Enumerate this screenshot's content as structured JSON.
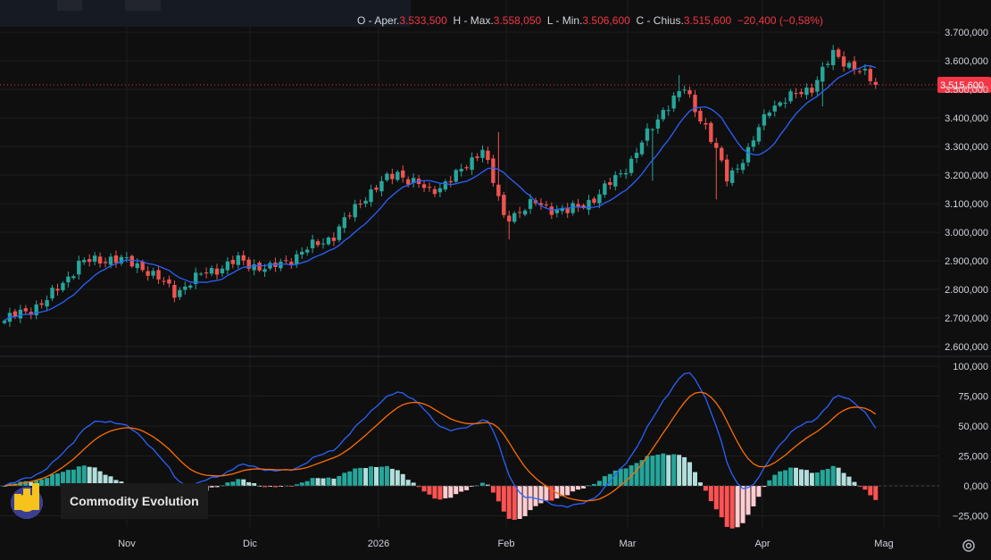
{
  "ohlc": {
    "open_label": "Aper.",
    "open": "3.533,500",
    "high_label": "H - Max.",
    "high": "3.558,050",
    "low_label": "L - Min.",
    "low": "3.506,600",
    "close_label": "C - Chius.",
    "close": "3.515,600",
    "change": "−20,400 (−0,58%)"
  },
  "watermark": "Commodity Evolution",
  "colors": {
    "up": "#26a69a",
    "down": "#ef5350",
    "ma": "#2962ff",
    "macd": "#2962ff",
    "signal": "#ff6d00",
    "hist_up_strong": "#26a69a",
    "hist_up_weak": "#b2dfdb",
    "hist_dn_strong": "#ff5252",
    "hist_dn_weak": "#ffcdd2",
    "price_tag": "#f23645"
  },
  "icons": {
    "settings": "gear-icon",
    "watermark_logo": "gear-with-bar-chart-logo"
  },
  "chart_data": [
    {
      "type": "candlestick",
      "overlay": "moving-average",
      "y_tick_labels": [
        "3.700,000",
        "3.600,000",
        "3.500,000",
        "3.400,000",
        "3.300,000",
        "3.200,000",
        "3.100,000",
        "3.000,000",
        "2.900,000",
        "2.800,000",
        "2.700,000",
        "2.600,000"
      ],
      "ylim": [
        2580000,
        3720000
      ],
      "last_price_label": "3.515,600",
      "last_price": 3515600,
      "x_tick_labels": [
        "Nov",
        "Dic",
        "2026",
        "Feb",
        "Mar",
        "Apr",
        "Mag"
      ],
      "grid": true,
      "anchors": [
        {
          "i": 0,
          "c": 2690000
        },
        {
          "i": 8,
          "c": 2760000
        },
        {
          "i": 14,
          "c": 2890000
        },
        {
          "i": 20,
          "c": 2910000
        },
        {
          "i": 26,
          "c": 2880000
        },
        {
          "i": 32,
          "c": 2790000
        },
        {
          "i": 38,
          "c": 2860000
        },
        {
          "i": 44,
          "c": 2900000
        },
        {
          "i": 50,
          "c": 2870000
        },
        {
          "i": 56,
          "c": 2930000
        },
        {
          "i": 62,
          "c": 2990000
        },
        {
          "i": 68,
          "c": 3130000
        },
        {
          "i": 74,
          "c": 3210000
        },
        {
          "i": 80,
          "c": 3140000
        },
        {
          "i": 86,
          "c": 3210000
        },
        {
          "i": 90,
          "c": 3300000
        },
        {
          "i": 94,
          "c": 3050000
        },
        {
          "i": 100,
          "c": 3100000
        },
        {
          "i": 106,
          "c": 3070000
        },
        {
          "i": 112,
          "c": 3130000
        },
        {
          "i": 118,
          "c": 3250000
        },
        {
          "i": 124,
          "c": 3430000
        },
        {
          "i": 128,
          "c": 3500000
        },
        {
          "i": 132,
          "c": 3370000
        },
        {
          "i": 136,
          "c": 3190000
        },
        {
          "i": 140,
          "c": 3280000
        },
        {
          "i": 144,
          "c": 3440000
        },
        {
          "i": 148,
          "c": 3470000
        },
        {
          "i": 152,
          "c": 3510000
        },
        {
          "i": 156,
          "c": 3620000
        },
        {
          "i": 160,
          "c": 3580000
        },
        {
          "i": 164,
          "c": 3515600
        }
      ]
    },
    {
      "type": "macd",
      "y_tick_labels": [
        "100,000",
        "75,000",
        "50,000",
        "25,000",
        "0,000",
        "−25,000"
      ],
      "ylim": [
        -30000,
        102000
      ],
      "series": [
        {
          "name": "macd",
          "color": "#2962ff"
        },
        {
          "name": "signal",
          "color": "#ff6d00"
        },
        {
          "name": "histogram",
          "color": "#26a69a"
        }
      ]
    }
  ]
}
